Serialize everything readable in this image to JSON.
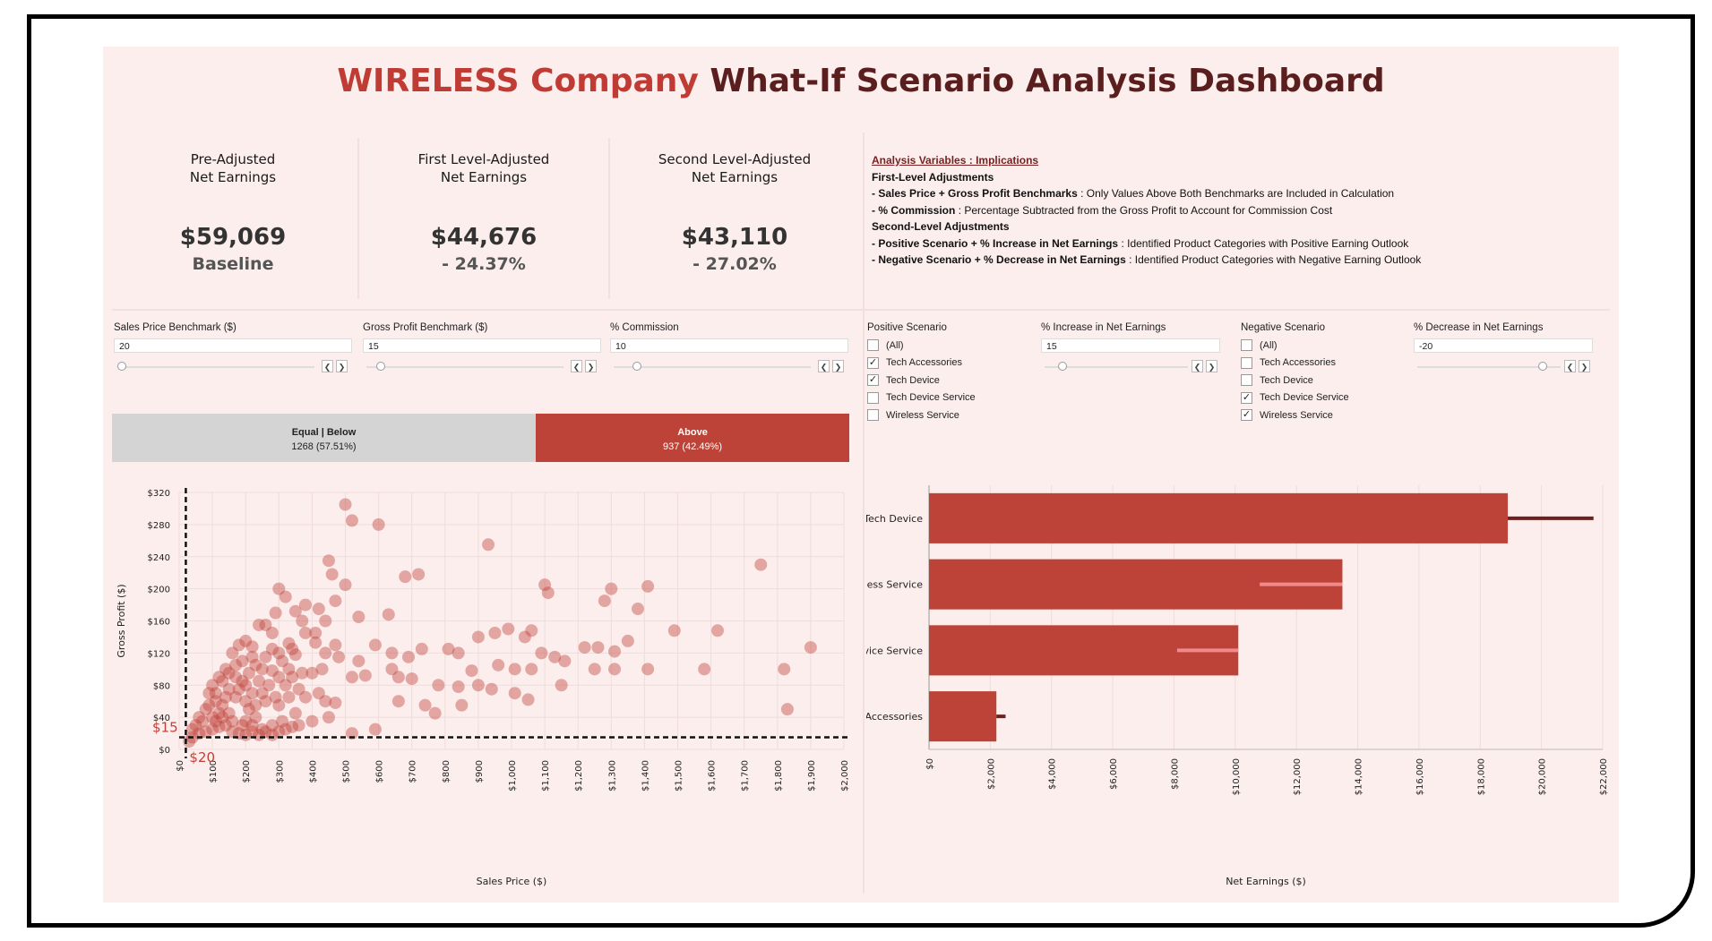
{
  "title": {
    "brand": "WIRELESS Company",
    "rest": " What-If Scenario Analysis Dashboard"
  },
  "kpis": [
    {
      "label1": "Pre-Adjusted",
      "label2": "Net Earnings",
      "value": "$59,069",
      "sub": "Baseline"
    },
    {
      "label1": "First Level-Adjusted",
      "label2": "Net Earnings",
      "value": "$44,676",
      "sub": "- 24.37%"
    },
    {
      "label1": "Second Level-Adjusted",
      "label2": "Net Earnings",
      "value": "$43,110",
      "sub": "- 27.02%"
    }
  ],
  "notes": {
    "heading": "Analysis Variables : Implications",
    "first_title": "First-Level Adjustments",
    "first": [
      {
        "key": "- Sales Price + Gross Profit Benchmarks",
        "text": " : Only Values Above Both Benchmarks are Included in Calculation"
      },
      {
        "key": "- % Commission",
        "text": " : Percentage Subtracted from the Gross Profit to Account for Commission Cost"
      }
    ],
    "second_title": "Second-Level Adjustments",
    "second": [
      {
        "key": "- Positive Scenario + % Increase in Net Earnings",
        "text": " : Identified Product Categories with Positive Earning Outlook"
      },
      {
        "key": "- Negative Scenario + % Decrease in Net Earnings",
        "text": " : Identified Product Categories with Negative Earning Outlook"
      }
    ]
  },
  "slicers": [
    {
      "label": "Sales Price Benchmark ($)",
      "value": "20",
      "level": 0.0
    },
    {
      "label": "Gross Profit Benchmark ($)",
      "value": "15",
      "level": 0.05
    },
    {
      "label": "% Commission",
      "value": "10",
      "level": 0.1
    },
    {
      "label": "% Increase in Net Earnings",
      "value": "15",
      "level": 0.1
    },
    {
      "label": "% Decrease in Net Earnings",
      "value": "-20",
      "level": 0.9
    }
  ],
  "positive_scenario": {
    "title": "Positive Scenario",
    "items": [
      {
        "label": "(All)",
        "checked": false
      },
      {
        "label": "Tech Accessories",
        "checked": true
      },
      {
        "label": "Tech Device",
        "checked": true
      },
      {
        "label": "Tech Device Service",
        "checked": false
      },
      {
        "label": "Wireless Service",
        "checked": false
      }
    ]
  },
  "negative_scenario": {
    "title": "Negative Scenario",
    "items": [
      {
        "label": "(All)",
        "checked": false
      },
      {
        "label": "Tech Accessories",
        "checked": false
      },
      {
        "label": "Tech Device",
        "checked": false
      },
      {
        "label": "Tech Device Service",
        "checked": true
      },
      {
        "label": "Wireless Service",
        "checked": true
      }
    ]
  },
  "split": {
    "below_label": "Equal | Below",
    "below_value": "1268 (57.51%)",
    "below_share": 0.5751,
    "above_label": "Above",
    "above_value": "937 (42.49%)"
  },
  "colors": {
    "accent": "#bd4339",
    "dark_accent": "#6e1f1f",
    "light_accent": "#f08a8a",
    "background": "#fbeeec"
  },
  "chart_data": [
    {
      "type": "scatter",
      "xlabel": "Sales Price ($)",
      "ylabel": "Gross Profit ($)",
      "x_ticks": [
        "$0",
        "$100",
        "$200",
        "$300",
        "$400",
        "$500",
        "$600",
        "$700",
        "$800",
        "$900",
        "$1,000",
        "$1,100",
        "$1,200",
        "$1,300",
        "$1,400",
        "$1,500",
        "$1,600",
        "$1,700",
        "$1,800",
        "$1,900",
        "$2,000"
      ],
      "y_ticks": [
        "$0",
        "$40",
        "$80",
        "$120",
        "$160",
        "$200",
        "$240",
        "$280",
        "$320"
      ],
      "xlim": [
        0,
        2000
      ],
      "ylim": [
        0,
        320
      ],
      "benchmark_x": {
        "value": 20,
        "label": "$20"
      },
      "benchmark_y": {
        "value": 15,
        "label": "$15"
      },
      "points": [
        [
          500,
          305
        ],
        [
          520,
          285
        ],
        [
          600,
          280
        ],
        [
          930,
          255
        ],
        [
          1750,
          230
        ],
        [
          450,
          235
        ],
        [
          460,
          218
        ],
        [
          680,
          215
        ],
        [
          720,
          218
        ],
        [
          500,
          205
        ],
        [
          1100,
          205
        ],
        [
          1110,
          195
        ],
        [
          1300,
          200
        ],
        [
          1410,
          203
        ],
        [
          300,
          200
        ],
        [
          320,
          190
        ],
        [
          470,
          185
        ],
        [
          380,
          180
        ],
        [
          350,
          172
        ],
        [
          1280,
          185
        ],
        [
          1380,
          175
        ],
        [
          290,
          170
        ],
        [
          420,
          175
        ],
        [
          540,
          165
        ],
        [
          630,
          168
        ],
        [
          440,
          160
        ],
        [
          370,
          160
        ],
        [
          240,
          155
        ],
        [
          260,
          155
        ],
        [
          280,
          145
        ],
        [
          380,
          145
        ],
        [
          410,
          145
        ],
        [
          990,
          150
        ],
        [
          1060,
          148
        ],
        [
          1490,
          148
        ],
        [
          1620,
          148
        ],
        [
          900,
          140
        ],
        [
          950,
          145
        ],
        [
          1040,
          140
        ],
        [
          1350,
          135
        ],
        [
          200,
          135
        ],
        [
          220,
          128
        ],
        [
          330,
          132
        ],
        [
          410,
          133
        ],
        [
          470,
          130
        ],
        [
          590,
          130
        ],
        [
          730,
          125
        ],
        [
          810,
          125
        ],
        [
          1900,
          127
        ],
        [
          1220,
          127
        ],
        [
          1260,
          127
        ],
        [
          1310,
          122
        ],
        [
          1090,
          120
        ],
        [
          300,
          120
        ],
        [
          350,
          118
        ],
        [
          440,
          120
        ],
        [
          480,
          115
        ],
        [
          540,
          110
        ],
        [
          640,
          120
        ],
        [
          690,
          115
        ],
        [
          840,
          120
        ],
        [
          1130,
          115
        ],
        [
          1160,
          110
        ],
        [
          960,
          105
        ],
        [
          1310,
          100
        ],
        [
          1410,
          100
        ],
        [
          1010,
          100
        ],
        [
          1060,
          100
        ],
        [
          880,
          98
        ],
        [
          1250,
          100
        ],
        [
          1580,
          100
        ],
        [
          1820,
          100
        ],
        [
          640,
          100
        ],
        [
          330,
          100
        ],
        [
          280,
          98
        ],
        [
          400,
          95
        ],
        [
          430,
          100
        ],
        [
          520,
          90
        ],
        [
          560,
          92
        ],
        [
          660,
          90
        ],
        [
          700,
          88
        ],
        [
          780,
          80
        ],
        [
          840,
          78
        ],
        [
          900,
          80
        ],
        [
          940,
          75
        ],
        [
          1010,
          70
        ],
        [
          1050,
          62
        ],
        [
          1150,
          80
        ],
        [
          380,
          65
        ],
        [
          420,
          70
        ],
        [
          440,
          60
        ],
        [
          470,
          58
        ],
        [
          660,
          60
        ],
        [
          740,
          55
        ],
        [
          770,
          45
        ],
        [
          850,
          55
        ],
        [
          1830,
          50
        ],
        [
          590,
          25
        ],
        [
          520,
          20
        ],
        [
          230,
          40
        ],
        [
          200,
          35
        ],
        [
          150,
          45
        ],
        [
          130,
          55
        ],
        [
          110,
          60
        ],
        [
          250,
          70
        ],
        [
          270,
          80
        ],
        [
          300,
          90
        ],
        [
          310,
          110
        ],
        [
          340,
          125
        ],
        [
          220,
          115
        ],
        [
          180,
          130
        ],
        [
          160,
          120
        ],
        [
          120,
          90
        ],
        [
          140,
          100
        ],
        [
          170,
          90
        ],
        [
          190,
          85
        ],
        [
          210,
          95
        ],
        [
          230,
          105
        ],
        [
          250,
          100
        ],
        [
          260,
          115
        ],
        [
          280,
          125
        ],
        [
          190,
          110
        ],
        [
          150,
          75
        ],
        [
          170,
          65
        ],
        [
          100,
          80
        ],
        [
          90,
          70
        ],
        [
          80,
          50
        ],
        [
          60,
          40
        ],
        [
          50,
          30
        ],
        [
          40,
          25
        ],
        [
          70,
          35
        ],
        [
          110,
          35
        ],
        [
          130,
          40
        ],
        [
          160,
          35
        ],
        [
          190,
          30
        ],
        [
          220,
          30
        ],
        [
          250,
          25
        ],
        [
          280,
          30
        ],
        [
          310,
          35
        ],
        [
          350,
          45
        ],
        [
          400,
          35
        ],
        [
          450,
          40
        ],
        [
          300,
          55
        ],
        [
          330,
          65
        ],
        [
          360,
          75
        ],
        [
          200,
          60
        ],
        [
          210,
          50
        ],
        [
          230,
          55
        ],
        [
          240,
          85
        ],
        [
          180,
          75
        ],
        [
          140,
          65
        ],
        [
          120,
          45
        ],
        [
          100,
          40
        ],
        [
          90,
          55
        ],
        [
          110,
          70
        ],
        [
          130,
          85
        ],
        [
          150,
          95
        ],
        [
          170,
          105
        ],
        [
          200,
          80
        ],
        [
          220,
          70
        ],
        [
          260,
          60
        ],
        [
          290,
          65
        ],
        [
          320,
          80
        ],
        [
          340,
          90
        ],
        [
          370,
          95
        ],
        [
          60,
          20
        ],
        [
          40,
          15
        ],
        [
          30,
          10
        ],
        [
          80,
          22
        ],
        [
          100,
          25
        ],
        [
          120,
          28
        ],
        [
          140,
          30
        ],
        [
          160,
          22
        ],
        [
          180,
          20
        ],
        [
          200,
          18
        ],
        [
          220,
          22
        ],
        [
          240,
          18
        ],
        [
          260,
          22
        ],
        [
          280,
          18
        ],
        [
          300,
          22
        ],
        [
          320,
          25
        ],
        [
          340,
          28
        ],
        [
          360,
          30
        ]
      ]
    },
    {
      "type": "bar",
      "orientation": "horizontal",
      "xlabel": "Net Earnings ($)",
      "categories": [
        "Tech Device",
        "Wireless Service",
        "Tech Device Service",
        "Tech Accessories"
      ],
      "values": [
        18900,
        13500,
        10100,
        2200
      ],
      "adjusted": [
        21700,
        10800,
        8100,
        2500
      ],
      "xlim": [
        0,
        22000
      ],
      "x_ticks": [
        "$0",
        "$2,000",
        "$4,000",
        "$6,000",
        "$8,000",
        "$10,000",
        "$12,000",
        "$14,000",
        "$16,000",
        "$18,000",
        "$20,000",
        "$22,000"
      ]
    }
  ]
}
